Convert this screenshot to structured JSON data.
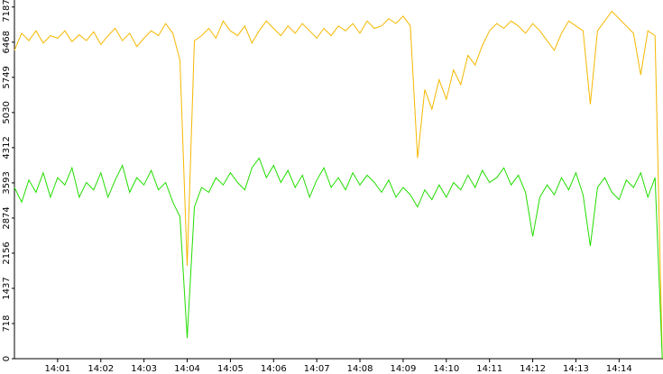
{
  "chart_data": {
    "type": "line",
    "categories": [
      null,
      null,
      null,
      null,
      null,
      null,
      "14:01",
      null,
      null,
      null,
      null,
      null,
      "14:02",
      null,
      null,
      null,
      null,
      null,
      "14:03",
      null,
      null,
      null,
      null,
      null,
      "14:04",
      null,
      null,
      null,
      null,
      null,
      "14:05",
      null,
      null,
      null,
      null,
      null,
      "14:06",
      null,
      null,
      null,
      null,
      null,
      "14:07",
      null,
      null,
      null,
      null,
      null,
      "14:08",
      null,
      null,
      null,
      null,
      null,
      "14:09",
      null,
      null,
      null,
      null,
      null,
      "14:10",
      null,
      null,
      null,
      null,
      null,
      "14:11",
      null,
      null,
      null,
      null,
      null,
      "14:12",
      null,
      null,
      null,
      null,
      null,
      "14:13",
      null,
      null,
      null,
      null,
      null,
      "14:14",
      null,
      null,
      null,
      null,
      null,
      null
    ],
    "series": [
      {
        "color": "#f5b800",
        "values": [
          6300,
          6650,
          6500,
          6700,
          6450,
          6600,
          6550,
          6700,
          6480,
          6620,
          6500,
          6680,
          6420,
          6600,
          6750,
          6500,
          6650,
          6380,
          6550,
          6700,
          6600,
          6850,
          6650,
          6100,
          1900,
          6500,
          6600,
          6750,
          6550,
          6900,
          6700,
          6600,
          6800,
          6450,
          6700,
          6900,
          6750,
          6600,
          6800,
          6650,
          6850,
          6700,
          6550,
          6750,
          6600,
          6800,
          6700,
          6850,
          6650,
          6900,
          6750,
          6800,
          6950,
          6850,
          7000,
          6800,
          4100,
          5500,
          5100,
          5700,
          5300,
          5900,
          5600,
          6200,
          6000,
          6400,
          6700,
          6850,
          6750,
          6900,
          6800,
          6650,
          6850,
          6700,
          6500,
          6300,
          6650,
          6900,
          6800,
          6700,
          5200,
          6700,
          6900,
          7100,
          6950,
          6800,
          6650,
          5800,
          6700,
          6600,
          0
        ]
      },
      {
        "color": "#22dd00",
        "values": [
          3500,
          3200,
          3650,
          3400,
          3800,
          3300,
          3700,
          3550,
          3900,
          3300,
          3600,
          3450,
          3800,
          3300,
          3650,
          3950,
          3400,
          3700,
          3550,
          3850,
          3450,
          3600,
          3200,
          2900,
          420,
          3100,
          3500,
          3400,
          3700,
          3550,
          3800,
          3600,
          3450,
          3900,
          4100,
          3700,
          3950,
          3600,
          3850,
          3500,
          3750,
          3300,
          3650,
          3900,
          3500,
          3700,
          3450,
          3800,
          3550,
          3750,
          3600,
          3400,
          3650,
          3300,
          3500,
          3350,
          3100,
          3450,
          3250,
          3550,
          3300,
          3600,
          3450,
          3750,
          3500,
          3850,
          3600,
          3700,
          3900,
          3550,
          3750,
          3400,
          2500,
          3300,
          3550,
          3350,
          3700,
          3450,
          3800,
          3350,
          2300,
          3500,
          3700,
          3400,
          3250,
          3650,
          3500,
          3800,
          3300,
          3700,
          0
        ]
      }
    ],
    "ylim": [
      0,
      7330
    ],
    "yticks": [
      0,
      718,
      1437,
      2156,
      2874,
      3593,
      4312,
      5030,
      5749,
      6468,
      7187
    ]
  }
}
